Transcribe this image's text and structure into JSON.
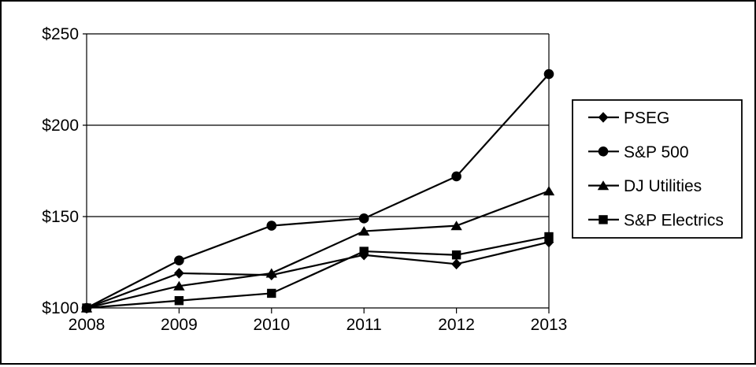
{
  "chart_data": {
    "type": "line",
    "title": "",
    "x": [
      "2008",
      "2009",
      "2010",
      "2011",
      "2012",
      "2013"
    ],
    "xtick_labels": [
      "2008",
      "2009",
      "2010",
      "2011",
      "2012",
      "2013"
    ],
    "ytick_labels": [
      "$100",
      "$150",
      "$200",
      "$250"
    ],
    "ytick_values": [
      100,
      150,
      200,
      250
    ],
    "ylim": [
      100,
      250
    ],
    "grid": "horizontal",
    "legend_position": "right",
    "line_color": "#000000",
    "background_color": "#ffffff",
    "series": [
      {
        "name": "PSEG",
        "marker": "diamond",
        "values": [
          100,
          119,
          118,
          129,
          124,
          136
        ]
      },
      {
        "name": "S&P 500",
        "marker": "circle",
        "values": [
          100,
          126,
          145,
          149,
          172,
          228
        ]
      },
      {
        "name": "DJ Utilities",
        "marker": "triangle",
        "values": [
          100,
          112,
          119,
          142,
          145,
          164
        ]
      },
      {
        "name": "S&P Electrics",
        "marker": "square",
        "values": [
          100,
          104,
          108,
          131,
          129,
          139
        ]
      }
    ]
  }
}
